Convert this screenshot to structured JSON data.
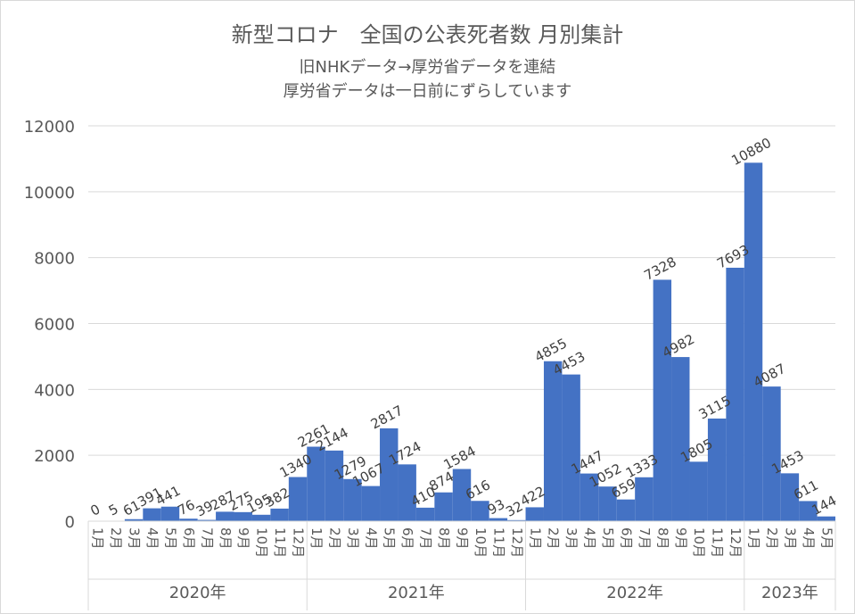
{
  "chart_data": {
    "type": "bar",
    "title": "新型コロナ　全国の公表死者数 月別集計",
    "subtitle_lines": [
      "旧NHKデータ→厚労省データを連結",
      "厚労省データは一日前にずらしています"
    ],
    "xlabel": "",
    "ylabel": "",
    "ylim": [
      0,
      12000
    ],
    "yticks": [
      0,
      2000,
      4000,
      6000,
      8000,
      10000,
      12000
    ],
    "grid": true,
    "legend": "none",
    "bar_color": "#4472c4",
    "categories": [
      "1月",
      "2月",
      "3月",
      "4月",
      "5月",
      "6月",
      "7月",
      "8月",
      "9月",
      "10月",
      "11月",
      "12月",
      "1月",
      "2月",
      "3月",
      "4月",
      "5月",
      "6月",
      "7月",
      "8月",
      "9月",
      "10月",
      "11月",
      "12月",
      "1月",
      "2月",
      "3月",
      "4月",
      "5月",
      "6月",
      "7月",
      "8月",
      "9月",
      "10月",
      "11月",
      "12月",
      "1月",
      "2月",
      "3月",
      "4月",
      "5月"
    ],
    "year_groups": [
      {
        "label": "2020年",
        "count": 12
      },
      {
        "label": "2021年",
        "count": 12
      },
      {
        "label": "2022年",
        "count": 12
      },
      {
        "label": "2023年",
        "count": 5
      }
    ],
    "values": [
      0,
      5,
      61,
      391,
      441,
      76,
      39,
      287,
      275,
      195,
      382,
      1340,
      2261,
      2144,
      1279,
      1067,
      2817,
      1724,
      410,
      874,
      1584,
      616,
      93,
      32,
      422,
      4855,
      4453,
      1447,
      1052,
      659,
      1333,
      7328,
      4982,
      1805,
      3115,
      7693,
      10880,
      4087,
      1453,
      611,
      144
    ]
  }
}
